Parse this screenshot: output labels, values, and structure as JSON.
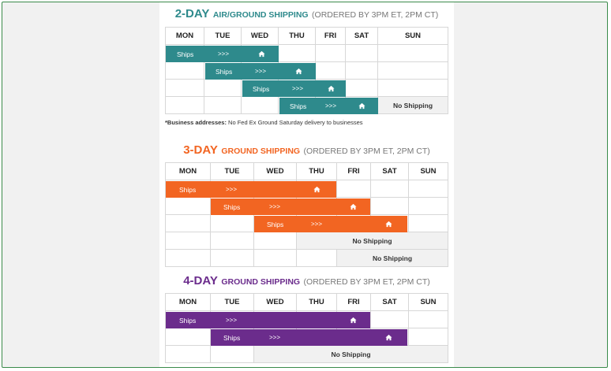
{
  "section1": {
    "title_big": "2-DAY",
    "title_small": "AIR/GROUND SHIPPING",
    "ordered": "(ORDERED BY 3PM ET, 2PM CT)",
    "days": [
      "MON",
      "TUE",
      "WED",
      "THU",
      "FRI",
      "SAT",
      "SUN"
    ],
    "ship_label": "Ships",
    "arrow": ">>>",
    "no_shipping": "No Shipping",
    "note_bold": "*Business addresses:",
    "note_text": " No Fed Ex Ground Saturday delivery to businesses",
    "color": "#2e8a8c"
  },
  "section2": {
    "title_big": "3-DAY",
    "title_small": "GROUND SHIPPING",
    "ordered": "(ORDERED BY 3PM ET, 2PM CT)",
    "days": [
      "MON",
      "TUE",
      "WED",
      "THU",
      "FRI",
      "SAT",
      "SUN"
    ],
    "ship_label": "Ships",
    "arrow": ">>>",
    "no_shipping": "No Shipping",
    "color": "#f26522"
  },
  "section3": {
    "title_big": "4-DAY",
    "title_small": "GROUND SHIPPING",
    "ordered": "(ORDERED BY 3PM ET, 2PM CT)",
    "days": [
      "MON",
      "TUE",
      "WED",
      "THU",
      "FRI",
      "SAT",
      "SUN"
    ],
    "ship_label": "Ships",
    "arrow": ">>>",
    "no_shipping": "No Shipping",
    "color": "#6b2c8c"
  }
}
